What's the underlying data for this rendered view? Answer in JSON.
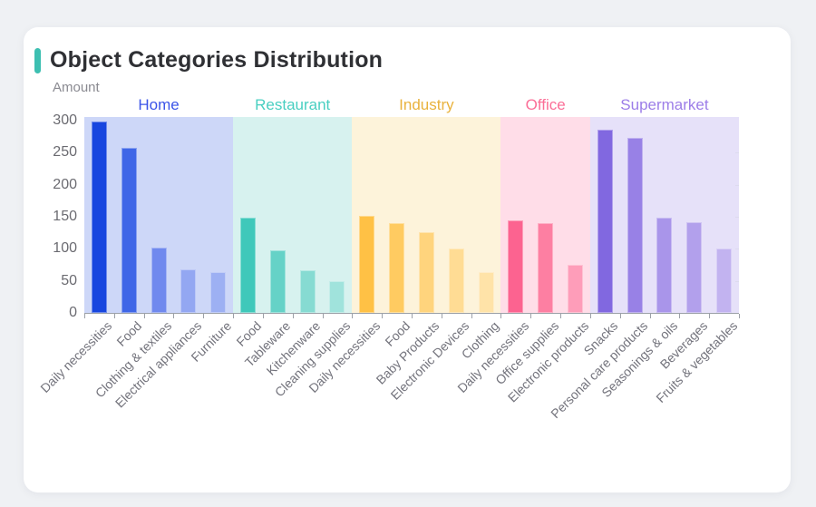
{
  "card": {
    "accent_color": "#3dbfb1"
  },
  "chart_data": {
    "type": "bar",
    "title": "Object Categories Distribution",
    "ylabel": "Amount",
    "xlabel": "",
    "ylim": [
      0,
      300
    ],
    "yticks": [
      0,
      50,
      100,
      150,
      200,
      250,
      300
    ],
    "grid": false,
    "legend_position": "top",
    "axis_color": "#9ca1a8",
    "groups": [
      {
        "name": "Home",
        "label_color": "#3b54e8",
        "band_color": "#cdd7f8",
        "bars": [
          {
            "label": "Daily necessities",
            "value": 298,
            "color": "#1746df"
          },
          {
            "label": "Food",
            "value": 258,
            "color": "#3f66e7"
          },
          {
            "label": "Clothing & textiles",
            "value": 102,
            "color": "#7089ee"
          },
          {
            "label": "Electrical appliances",
            "value": 68,
            "color": "#93a7f2"
          },
          {
            "label": "Furniture",
            "value": 64,
            "color": "#9db0f3"
          }
        ]
      },
      {
        "name": "Restaurant",
        "label_color": "#48cfc1",
        "band_color": "#d7f2ef",
        "bars": [
          {
            "label": "Food",
            "value": 149,
            "color": "#3fc8ba"
          },
          {
            "label": "Tableware",
            "value": 97,
            "color": "#65d2c7"
          },
          {
            "label": "Kitchenware",
            "value": 66,
            "color": "#86dbd2"
          },
          {
            "label": "Cleaning supplies",
            "value": 50,
            "color": "#a0e3dc"
          }
        ]
      },
      {
        "name": "Industry",
        "label_color": "#e9b23d",
        "band_color": "#fdf3da",
        "bars": [
          {
            "label": "Daily necessities",
            "value": 151,
            "color": "#ffc145"
          },
          {
            "label": "Food",
            "value": 140,
            "color": "#ffcb61"
          },
          {
            "label": "Baby Products",
            "value": 126,
            "color": "#ffd47d"
          },
          {
            "label": "Electronic Devices",
            "value": 100,
            "color": "#ffdc94"
          },
          {
            "label": "Clothing",
            "value": 64,
            "color": "#ffe3a8"
          }
        ]
      },
      {
        "name": "Office",
        "label_color": "#fb6e97",
        "band_color": "#ffdde8",
        "bars": [
          {
            "label": "Daily necessities",
            "value": 144,
            "color": "#fc6390"
          },
          {
            "label": "Office supplies",
            "value": 140,
            "color": "#fd7fa2"
          },
          {
            "label": "Electronic products",
            "value": 75,
            "color": "#fe9db9"
          }
        ]
      },
      {
        "name": "Supermarket",
        "label_color": "#9c7de8",
        "band_color": "#e6e1f9",
        "bars": [
          {
            "label": "Snacks",
            "value": 286,
            "color": "#8168e0"
          },
          {
            "label": "Personal care products",
            "value": 273,
            "color": "#9881e6"
          },
          {
            "label": "Seasonings & oils",
            "value": 149,
            "color": "#a995ea"
          },
          {
            "label": "Beverages",
            "value": 141,
            "color": "#b2a0ec"
          },
          {
            "label": "Fruits & vegetables",
            "value": 101,
            "color": "#c2b3f0"
          }
        ]
      }
    ]
  }
}
